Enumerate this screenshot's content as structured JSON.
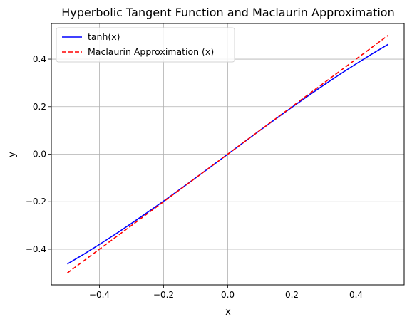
{
  "chart_data": {
    "type": "line",
    "title": "Hyperbolic Tangent Function and Maclaurin Approximation",
    "xlabel": "x",
    "ylabel": "y",
    "xlim": [
      -0.55,
      0.55
    ],
    "ylim": [
      -0.55,
      0.55
    ],
    "xticks": [
      -0.4,
      -0.2,
      0.0,
      0.2,
      0.4
    ],
    "xtick_labels": [
      "−0.4",
      "−0.2",
      "0.0",
      "0.2",
      "0.4"
    ],
    "yticks": [
      -0.4,
      -0.2,
      0.0,
      0.2,
      0.4
    ],
    "ytick_labels": [
      "−0.4",
      "−0.2",
      "0.0",
      "0.2",
      "0.4"
    ],
    "grid": true,
    "legend_position": "upper-left",
    "series": [
      {
        "name": "tanh(x)",
        "color": "#0000ff",
        "style": "solid",
        "x": [
          -0.5,
          -0.45,
          -0.4,
          -0.35,
          -0.3,
          -0.25,
          -0.2,
          -0.15,
          -0.1,
          -0.05,
          0.0,
          0.05,
          0.1,
          0.15,
          0.2,
          0.25,
          0.3,
          0.35,
          0.4,
          0.45,
          0.5
        ],
        "y": [
          -0.4621,
          -0.4219,
          -0.3799,
          -0.3364,
          -0.2913,
          -0.2449,
          -0.1974,
          -0.1489,
          -0.0997,
          -0.05,
          0.0,
          0.05,
          0.0997,
          0.1489,
          0.1974,
          0.2449,
          0.2913,
          0.3364,
          0.3799,
          0.4219,
          0.4621
        ]
      },
      {
        "name": "Maclaurin Approximation (x)",
        "color": "#ff0000",
        "style": "dashed",
        "x": [
          -0.5,
          0.5
        ],
        "y": [
          -0.5,
          0.5
        ]
      }
    ]
  }
}
